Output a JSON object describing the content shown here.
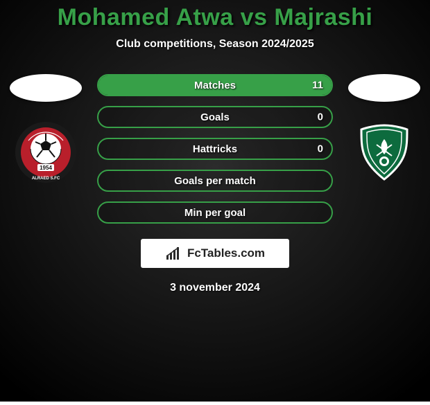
{
  "title": {
    "text": "Mohamed Atwa vs Majrashi",
    "color": "#37a048",
    "fontsize": 34
  },
  "subtitle": {
    "text": "Club competitions, Season 2024/2025",
    "color": "#ffffff",
    "fontsize": 16
  },
  "background": {
    "base_color": "#0a0a0a",
    "vignette_inner": "#2c2c2c",
    "vignette_outer": "#000000"
  },
  "left_player": {
    "country_flag_bg": "#ffffff",
    "club": {
      "name": "Al Raed",
      "outer_color": "#1a1a1a",
      "inner_color": "#b91f2b",
      "ball_color": "#ffffff",
      "year": "1954"
    }
  },
  "right_player": {
    "country_flag_bg": "#ffffff",
    "club": {
      "name": "Al Ahli",
      "shield_color": "#0d6b3e",
      "shield_border": "#ffffff",
      "emblem_color": "#ffffff"
    }
  },
  "stats": {
    "pill_border": "#37a048",
    "pill_bg": "rgba(0,0,0,0.15)",
    "fill_color": "#37a048",
    "label_color": "#ffffff",
    "value_color": "#ffffff",
    "rows": [
      {
        "label": "Matches",
        "right_value": "11",
        "fill_pct": 100
      },
      {
        "label": "Goals",
        "right_value": "0",
        "fill_pct": 0
      },
      {
        "label": "Hattricks",
        "right_value": "0",
        "fill_pct": 0
      },
      {
        "label": "Goals per match",
        "right_value": "",
        "fill_pct": 0
      },
      {
        "label": "Min per goal",
        "right_value": "",
        "fill_pct": 0
      }
    ]
  },
  "watermark": {
    "text": "FcTables.com",
    "bg": "#ffffff",
    "icon_color": "#2a2a2a"
  },
  "date": {
    "text": "3 november 2024",
    "color": "#ffffff"
  }
}
